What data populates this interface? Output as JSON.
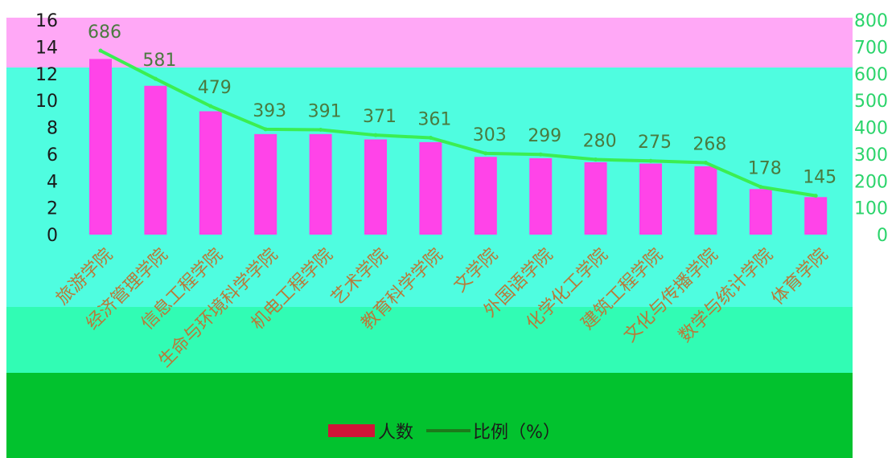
{
  "chart_data": {
    "type": "bar",
    "categories": [
      "旅游学院",
      "经济管理学院",
      "信息工程学院",
      "生命与环境科学学院",
      "机电工程学院",
      "艺术学院",
      "教育科学学院",
      "文学院",
      "外国语学院",
      "化学化工学院",
      "建筑工程学院",
      "文化与传播学院",
      "数学与统计学院",
      "体育学院"
    ],
    "series": [
      {
        "name": "人数",
        "values": [
          686,
          581,
          479,
          393,
          391,
          371,
          361,
          303,
          299,
          280,
          275,
          268,
          178,
          145
        ]
      },
      {
        "name": "比例（%）",
        "values": [
          13.1,
          11.1,
          9.2,
          7.5,
          7.5,
          7.1,
          6.9,
          5.8,
          5.7,
          5.4,
          5.3,
          5.1,
          3.4,
          2.8
        ]
      }
    ],
    "data_labels": [
      "686",
      "581",
      "479",
      "393",
      "391",
      "371",
      "361",
      "303",
      "299",
      "280",
      "275",
      "268",
      "178",
      "145"
    ],
    "y_left": {
      "ticks": [
        "0",
        "2",
        "4",
        "6",
        "8",
        "10",
        "12",
        "14",
        "16"
      ],
      "range": [
        0,
        16
      ]
    },
    "y_right": {
      "ticks": [
        "0",
        "100",
        "200",
        "300",
        "400",
        "500",
        "600",
        "700",
        "800"
      ],
      "range": [
        0,
        800
      ]
    },
    "legend": {
      "position": "bottom",
      "items": [
        "人数",
        "比例（%）"
      ]
    },
    "colors": {
      "bar": "#ff44e8",
      "line": "#3bee52",
      "legend_bar": "#d01438",
      "legend_line": "#1c7a1a"
    },
    "background_bands": [
      "#ffa8f6",
      "#4ffde0",
      "#31fcb4",
      "#02c22e"
    ],
    "grid": false
  }
}
